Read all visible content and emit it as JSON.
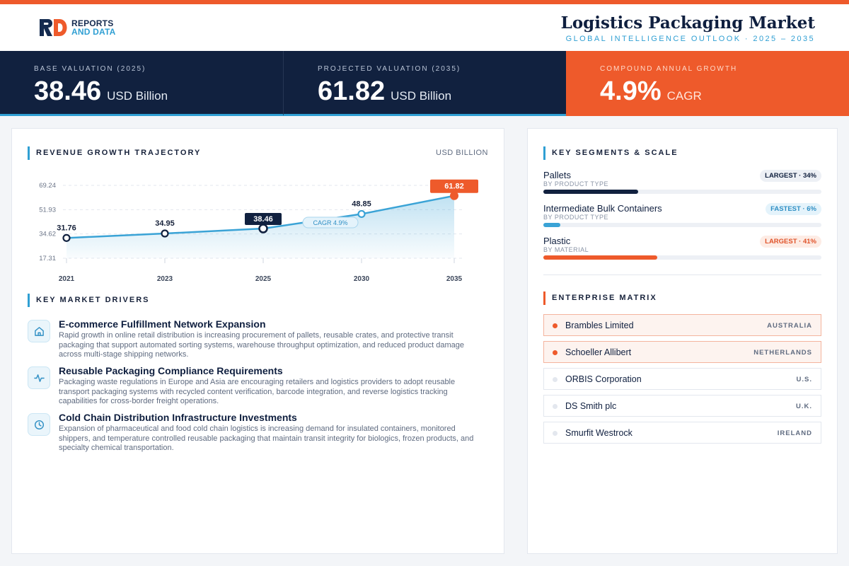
{
  "brand": {
    "line1": "REPORTS",
    "line2": "AND DATA",
    "colors": {
      "navy": "#142a4f",
      "blue": "#2f9fd3",
      "orange": "#ee5a2b"
    }
  },
  "header": {
    "title": "Logistics Packaging Market",
    "subtitle": "GLOBAL INTELLIGENCE OUTLOOK  ·  2025 – 2035"
  },
  "kpis": [
    {
      "label": "BASE VALUATION (2025)",
      "value": "38.46",
      "unit": "USD Billion"
    },
    {
      "label": "PROJECTED VALUATION (2035)",
      "value": "61.82",
      "unit": "USD Billion"
    },
    {
      "label": "COMPOUND ANNUAL GROWTH",
      "value": "4.9%",
      "unit": "CAGR"
    }
  ],
  "revenue": {
    "title": "REVENUE GROWTH TRAJECTORY",
    "unit": "USD BILLION"
  },
  "chart_data": {
    "type": "area",
    "categories": [
      "2021",
      "2023",
      "2025",
      "2030",
      "2035"
    ],
    "values": [
      31.76,
      34.95,
      38.46,
      48.85,
      61.82
    ],
    "labels": [
      "31.76",
      "34.95",
      "38.46",
      "48.85",
      "61.82"
    ],
    "yticks": [
      "69.24",
      "51.93",
      "34.62",
      "17.31"
    ],
    "ytick_values": [
      69.24,
      51.93,
      34.62,
      17.31
    ],
    "ylim": [
      17.31,
      69.24
    ],
    "annotation": "CAGR 4.9%",
    "grid": true,
    "highlight": {
      "base_index": 2,
      "end_index": 4
    },
    "colors": {
      "line": "#3aa3d6",
      "base": "#11213f",
      "end": "#ee5a2b"
    }
  },
  "drivers": {
    "title": "KEY MARKET DRIVERS",
    "items": [
      {
        "icon": "home-icon",
        "title": "E-commerce Fulfillment Network Expansion",
        "desc": "Rapid growth in online retail distribution is increasing procurement of pallets, reusable crates, and protective transit packaging that support automated sorting systems, warehouse throughput optimization, and reduced product damage across multi-stage shipping networks."
      },
      {
        "icon": "pulse-icon",
        "title": "Reusable Packaging Compliance Requirements",
        "desc": "Packaging waste regulations in Europe and Asia are encouraging retailers and logistics providers to adopt reusable transport packaging systems with recycled content verification, barcode integration, and reverse logistics tracking capabilities for cross-border freight operations."
      },
      {
        "icon": "clock-icon",
        "title": "Cold Chain Distribution Infrastructure Investments",
        "desc": "Expansion of pharmaceutical and food cold chain logistics is increasing demand for insulated containers, monitored shippers, and temperature controlled reusable packaging that maintain transit integrity for biologics, frozen products, and specialty chemical transportation."
      }
    ]
  },
  "segments": {
    "title": "KEY SEGMENTS & SCALE",
    "items": [
      {
        "name": "Pallets",
        "type": "BY PRODUCT TYPE",
        "badge": "LARGEST · 34%",
        "share": 0.34,
        "fill": "#11213f",
        "badge_bg": "#edf0f5",
        "badge_fg": "#11213f"
      },
      {
        "name": "Intermediate Bulk Containers",
        "type": "BY PRODUCT TYPE",
        "badge": "FASTEST · 6%",
        "share": 0.06,
        "fill": "#3aa3d6",
        "badge_bg": "#e4f3fb",
        "badge_fg": "#2f8fc4"
      },
      {
        "name": "Plastic",
        "type": "BY MATERIAL",
        "badge": "LARGEST · 41%",
        "share": 0.41,
        "fill": "#ee5a2b",
        "badge_bg": "#fdece5",
        "badge_fg": "#e0532a"
      }
    ]
  },
  "enterprise": {
    "title": "ENTERPRISE MATRIX",
    "items": [
      {
        "name": "Brambles Limited",
        "country": "AUSTRALIA",
        "highlight": true
      },
      {
        "name": "Schoeller Allibert",
        "country": "NETHERLANDS",
        "highlight": true
      },
      {
        "name": "ORBIS Corporation",
        "country": "U.S.",
        "highlight": false
      },
      {
        "name": "DS Smith plc",
        "country": "U.K.",
        "highlight": false
      },
      {
        "name": "Smurfit Westrock",
        "country": "IRELAND",
        "highlight": false
      }
    ]
  }
}
